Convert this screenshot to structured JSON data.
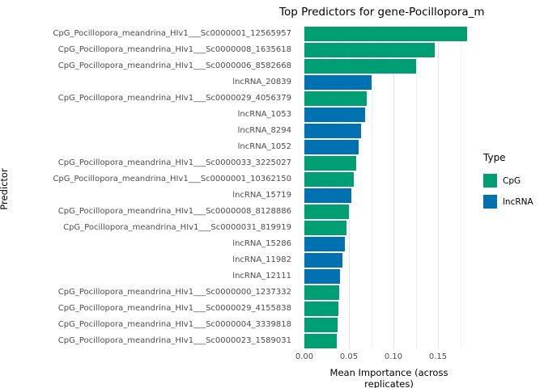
{
  "chart_data": {
    "type": "bar",
    "orientation": "horizontal",
    "title": "Top Predictors for gene-Pocillopora_m",
    "xlabel": "Mean Importance (across replicates)",
    "ylabel": "Predictor",
    "xlim": [
      0,
      0.19
    ],
    "xticks": [
      0,
      0.05,
      0.1,
      0.15
    ],
    "xtick_labels": [
      "0.00",
      "0.05",
      "0.10",
      "0.15"
    ],
    "grid": true,
    "legend_position": "right",
    "legend": {
      "title": "Type",
      "entries": [
        {
          "label": "CpG",
          "color": "#009E73"
        },
        {
          "label": "lncRNA",
          "color": "#0072B2"
        }
      ]
    },
    "bars": [
      {
        "label": "CpG_Pocillopora_meandrina_HIv1___Sc0000001_12565957",
        "value": 0.183,
        "type": "CpG"
      },
      {
        "label": "CpG_Pocillopora_meandrina_HIv1___Sc0000008_1635618",
        "value": 0.146,
        "type": "CpG"
      },
      {
        "label": "CpG_Pocillopora_meandrina_HIv1___Sc0000006_8582668",
        "value": 0.125,
        "type": "CpG"
      },
      {
        "label": "lncRNA_20839",
        "value": 0.075,
        "type": "lncRNA"
      },
      {
        "label": "CpG_Pocillopora_meandrina_HIv1___Sc0000029_4056379",
        "value": 0.07,
        "type": "CpG"
      },
      {
        "label": "lncRNA_1053",
        "value": 0.068,
        "type": "lncRNA"
      },
      {
        "label": "lncRNA_8294",
        "value": 0.064,
        "type": "lncRNA"
      },
      {
        "label": "lncRNA_1052",
        "value": 0.061,
        "type": "lncRNA"
      },
      {
        "label": "CpG_Pocillopora_meandrina_HIv1___Sc0000033_3225027",
        "value": 0.058,
        "type": "CpG"
      },
      {
        "label": "CpG_Pocillopora_meandrina_HIv1___Sc0000001_10362150",
        "value": 0.055,
        "type": "CpG"
      },
      {
        "label": "lncRNA_15719",
        "value": 0.053,
        "type": "lncRNA"
      },
      {
        "label": "CpG_Pocillopora_meandrina_HIv1___Sc0000008_8128886",
        "value": 0.05,
        "type": "CpG"
      },
      {
        "label": "CpG_Pocillopora_meandrina_HIv1___Sc0000031_819919",
        "value": 0.047,
        "type": "CpG"
      },
      {
        "label": "lncRNA_15286",
        "value": 0.045,
        "type": "lncRNA"
      },
      {
        "label": "lncRNA_11982",
        "value": 0.043,
        "type": "lncRNA"
      },
      {
        "label": "lncRNA_12111",
        "value": 0.04,
        "type": "lncRNA"
      },
      {
        "label": "CpG_Pocillopora_meandrina_HIv1___Sc0000000_1237332",
        "value": 0.039,
        "type": "CpG"
      },
      {
        "label": "CpG_Pocillopora_meandrina_HIv1___Sc0000029_4155838",
        "value": 0.038,
        "type": "CpG"
      },
      {
        "label": "CpG_Pocillopora_meandrina_HIv1___Sc0000004_3339818",
        "value": 0.037,
        "type": "CpG"
      },
      {
        "label": "CpG_Pocillopora_meandrina_HIv1___Sc0000023_1589031",
        "value": 0.036,
        "type": "CpG"
      }
    ]
  }
}
